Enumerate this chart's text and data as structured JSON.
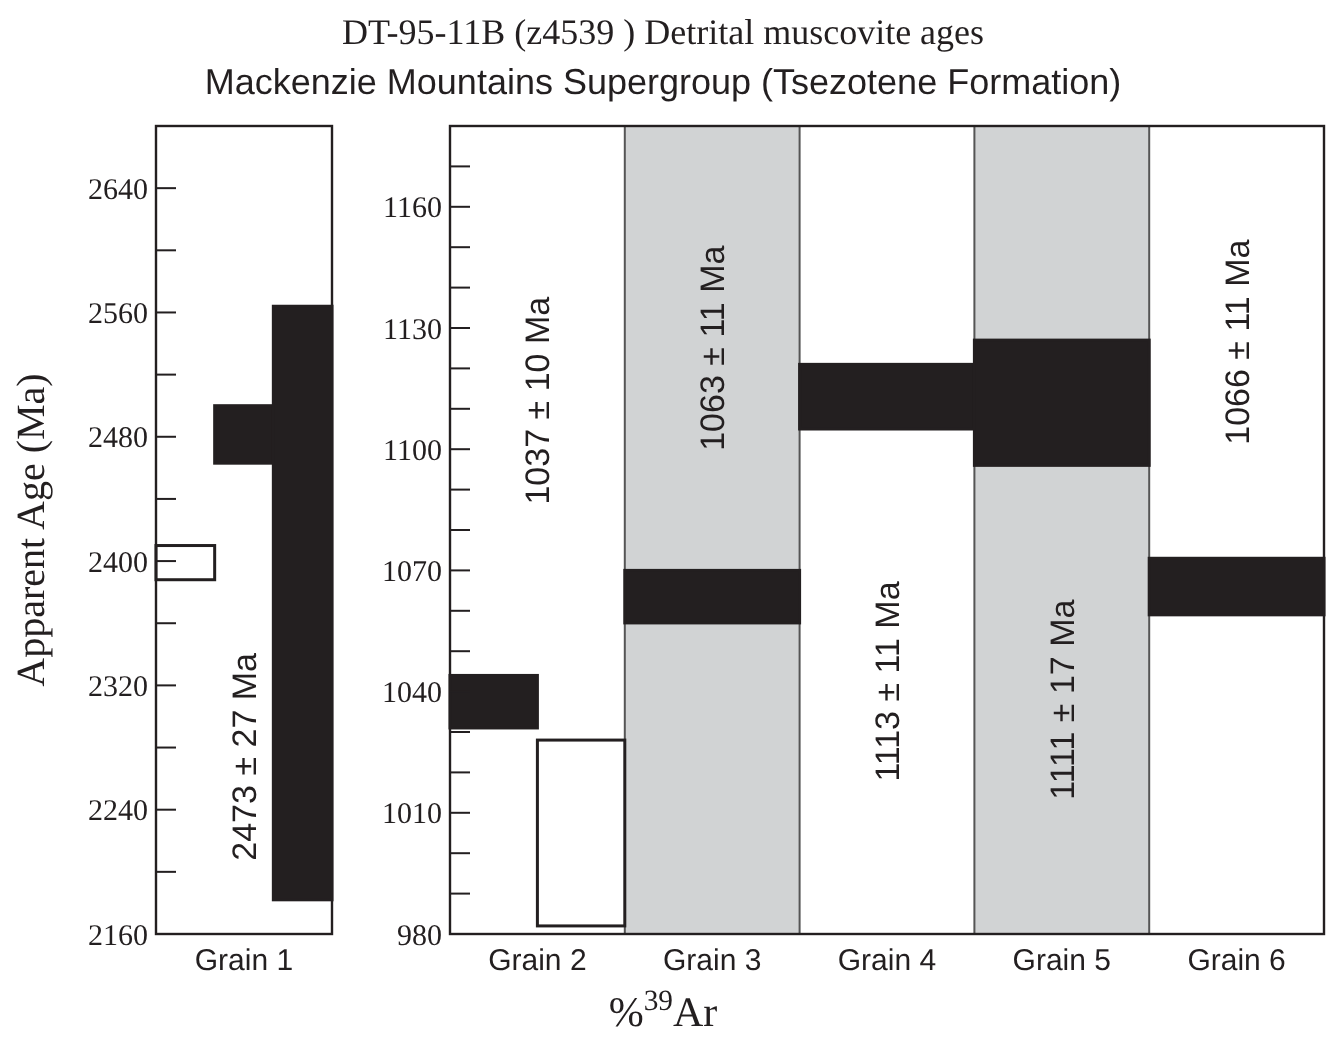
{
  "chart_data": [
    {
      "type": "bar",
      "ylabel": "Apparent Age (Ma)",
      "categories": [
        "Grain 1"
      ],
      "series": [
        {
          "color": "#ffffff",
          "base": [
            2388
          ],
          "values": [
            22
          ]
        },
        {
          "color": "#231f20",
          "base": [
            2463
          ],
          "values": [
            37
          ]
        },
        {
          "color": "#231f20",
          "base": [
            2182
          ],
          "values": [
            382
          ]
        }
      ],
      "ylim": [
        2160,
        2680
      ],
      "yticks": [
        2160,
        {
          "value": 2200,
          "label": null
        },
        2240,
        {
          "value": 2280,
          "label": null
        },
        2320,
        {
          "value": 2360,
          "label": null
        },
        2400,
        {
          "value": 2440,
          "label": null
        },
        2480,
        {
          "value": 2520,
          "label": null
        },
        2560,
        {
          "value": 2600,
          "label": null
        },
        2640
      ],
      "annotations": [
        "2473 ± 27 Ma"
      ]
    },
    {
      "type": "bar",
      "title": "DT-95-11B (z4539 )  Detrital muscovite ages",
      "subtitle": "Mackenzie Mountains Supergroup  (Tsezotene Formation)",
      "xlabel": "%$^{39}$Ar",
      "categories": [
        "Grain 2",
        "Grain 3",
        "Grain 4",
        "Grain 5",
        "Grain 6"
      ],
      "series": [
        {
          "color": "#231f20",
          "base": [
            1031,
            1057,
            1105,
            1096,
            1059
          ],
          "values": [
            13,
            13,
            16,
            31,
            14
          ]
        },
        {
          "color": "#ffffff",
          "base": [
            982,
            null,
            null,
            null,
            null
          ],
          "values": [
            46,
            null,
            null,
            null,
            null
          ]
        }
      ],
      "bands": [
        {
          "axis": "x",
          "from": "Grain 3",
          "to": "Grain 3",
          "color": "#d1d3d4"
        },
        {
          "axis": "x",
          "from": "Grain 5",
          "to": "Grain 5",
          "color": "#d1d3d4"
        }
      ],
      "ylim": [
        980,
        1180
      ],
      "yticks": [
        980,
        {
          "value": 990,
          "label": null
        },
        {
          "value": 1000,
          "label": null
        },
        1010,
        {
          "value": 1020,
          "label": null
        },
        {
          "value": 1030,
          "label": null
        },
        1040,
        {
          "value": 1050,
          "label": null
        },
        {
          "value": 1060,
          "label": null
        },
        1070,
        {
          "value": 1080,
          "label": null
        },
        {
          "value": 1090,
          "label": null
        },
        1100,
        {
          "value": 1110,
          "label": null
        },
        {
          "value": 1120,
          "label": null
        },
        1130,
        {
          "value": 1140,
          "label": null
        },
        {
          "value": 1150,
          "label": null
        },
        1160,
        {
          "value": 1170,
          "label": null
        }
      ],
      "annotations": [
        "1037 ± 10 Ma",
        "1063 ± 11 Ma",
        "1113 ± 11 Ma",
        "1111 ± 17 Ma",
        "1066 ± 11 Ma"
      ]
    }
  ]
}
